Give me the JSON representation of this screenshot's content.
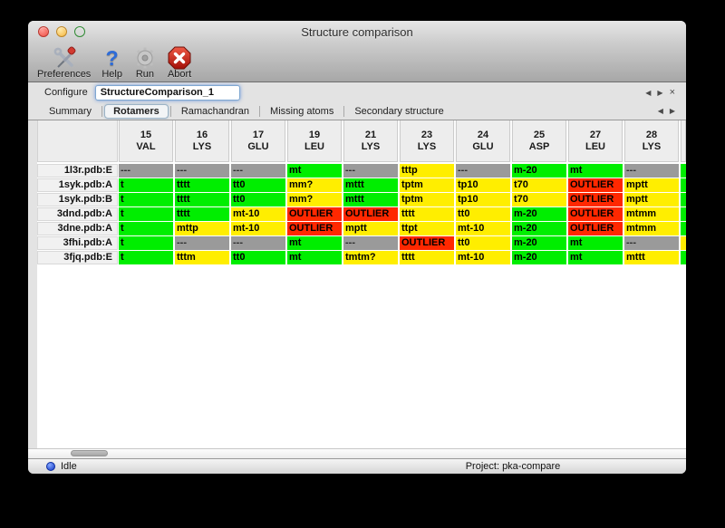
{
  "window": {
    "title": "Structure comparison"
  },
  "window_controls": [
    "close",
    "minimize",
    "zoom"
  ],
  "toolbar": {
    "items": [
      {
        "label": "Preferences",
        "icon": "tools-icon"
      },
      {
        "label": "Help",
        "icon": "question-mark-icon"
      },
      {
        "label": "Run",
        "icon": "gear-icon"
      },
      {
        "label": "Abort",
        "icon": "stop-x-icon"
      }
    ]
  },
  "configure": {
    "label": "Configure",
    "value": "StructureComparison_1"
  },
  "icons": {
    "nav_prev": "◀",
    "nav_next": "▶",
    "nav_close": "×"
  },
  "tabs": {
    "items": [
      {
        "label": "Summary",
        "selected": false
      },
      {
        "label": "Rotamers",
        "selected": true
      },
      {
        "label": "Ramachandran",
        "selected": false
      },
      {
        "label": "Missing atoms",
        "selected": false
      },
      {
        "label": "Secondary structure",
        "selected": false
      }
    ]
  },
  "colors": {
    "green": "#00ee00",
    "yellow": "#ffee00",
    "red": "#ff2800",
    "gray": "#9a9a9a"
  },
  "table": {
    "columns": [
      {
        "num": "15",
        "res": "VAL"
      },
      {
        "num": "16",
        "res": "LYS"
      },
      {
        "num": "17",
        "res": "GLU"
      },
      {
        "num": "19",
        "res": "LEU"
      },
      {
        "num": "21",
        "res": "LYS"
      },
      {
        "num": "23",
        "res": "LYS"
      },
      {
        "num": "24",
        "res": "GLU"
      },
      {
        "num": "25",
        "res": "ASP"
      },
      {
        "num": "27",
        "res": "LEU"
      },
      {
        "num": "28",
        "res": "LYS"
      }
    ],
    "rows": [
      {
        "label": "1l3r.pdb:E",
        "cells": [
          [
            "---",
            "none"
          ],
          [
            "---",
            "none"
          ],
          [
            "---",
            "none"
          ],
          [
            "mt",
            "ok"
          ],
          [
            "---",
            "none"
          ],
          [
            "tttp",
            "warn"
          ],
          [
            "---",
            "none"
          ],
          [
            "m-20",
            "ok"
          ],
          [
            "mt",
            "ok"
          ],
          [
            "---",
            "none"
          ]
        ],
        "sliver": "ok"
      },
      {
        "label": "1syk.pdb:A",
        "cells": [
          [
            "t",
            "ok"
          ],
          [
            "tttt",
            "ok"
          ],
          [
            "tt0",
            "ok"
          ],
          [
            "mm?",
            "warn"
          ],
          [
            "mttt",
            "ok"
          ],
          [
            "tptm",
            "warn"
          ],
          [
            "tp10",
            "warn"
          ],
          [
            "t70",
            "warn"
          ],
          [
            "OUTLIER",
            "outlier"
          ],
          [
            "mptt",
            "warn"
          ]
        ],
        "sliver": "ok"
      },
      {
        "label": "1syk.pdb:B",
        "cells": [
          [
            "t",
            "ok"
          ],
          [
            "tttt",
            "ok"
          ],
          [
            "tt0",
            "ok"
          ],
          [
            "mm?",
            "warn"
          ],
          [
            "mttt",
            "ok"
          ],
          [
            "tptm",
            "warn"
          ],
          [
            "tp10",
            "warn"
          ],
          [
            "t70",
            "warn"
          ],
          [
            "OUTLIER",
            "outlier"
          ],
          [
            "mptt",
            "warn"
          ]
        ],
        "sliver": "ok"
      },
      {
        "label": "3dnd.pdb:A",
        "cells": [
          [
            "t",
            "ok"
          ],
          [
            "tttt",
            "ok"
          ],
          [
            "mt-10",
            "warn"
          ],
          [
            "OUTLIER",
            "outlier"
          ],
          [
            "OUTLIER",
            "outlier"
          ],
          [
            "tttt",
            "warn"
          ],
          [
            "tt0",
            "warn"
          ],
          [
            "m-20",
            "ok"
          ],
          [
            "OUTLIER",
            "outlier"
          ],
          [
            "mtmm",
            "warn"
          ]
        ],
        "sliver": "ok"
      },
      {
        "label": "3dne.pdb:A",
        "cells": [
          [
            "t",
            "ok"
          ],
          [
            "mttp",
            "warn"
          ],
          [
            "mt-10",
            "warn"
          ],
          [
            "OUTLIER",
            "outlier"
          ],
          [
            "mptt",
            "warn"
          ],
          [
            "ttpt",
            "warn"
          ],
          [
            "mt-10",
            "warn"
          ],
          [
            "m-20",
            "ok"
          ],
          [
            "OUTLIER",
            "outlier"
          ],
          [
            "mtmm",
            "warn"
          ]
        ],
        "sliver": "ok"
      },
      {
        "label": "3fhi.pdb:A",
        "cells": [
          [
            "t",
            "ok"
          ],
          [
            "---",
            "none"
          ],
          [
            "---",
            "none"
          ],
          [
            "mt",
            "ok"
          ],
          [
            "---",
            "none"
          ],
          [
            "OUTLIER",
            "outlier"
          ],
          [
            "tt0",
            "warn"
          ],
          [
            "m-20",
            "ok"
          ],
          [
            "mt",
            "ok"
          ],
          [
            "---",
            "none"
          ]
        ],
        "sliver": "warn"
      },
      {
        "label": "3fjq.pdb:E",
        "cells": [
          [
            "t",
            "ok"
          ],
          [
            "tttm",
            "warn"
          ],
          [
            "tt0",
            "ok"
          ],
          [
            "mt",
            "ok"
          ],
          [
            "tmtm?",
            "warn"
          ],
          [
            "tttt",
            "warn"
          ],
          [
            "mt-10",
            "warn"
          ],
          [
            "m-20",
            "ok"
          ],
          [
            "mt",
            "ok"
          ],
          [
            "mttt",
            "warn"
          ]
        ],
        "sliver": "ok"
      }
    ]
  },
  "statusbar": {
    "status": "Idle",
    "project": "Project: pka-compare"
  }
}
